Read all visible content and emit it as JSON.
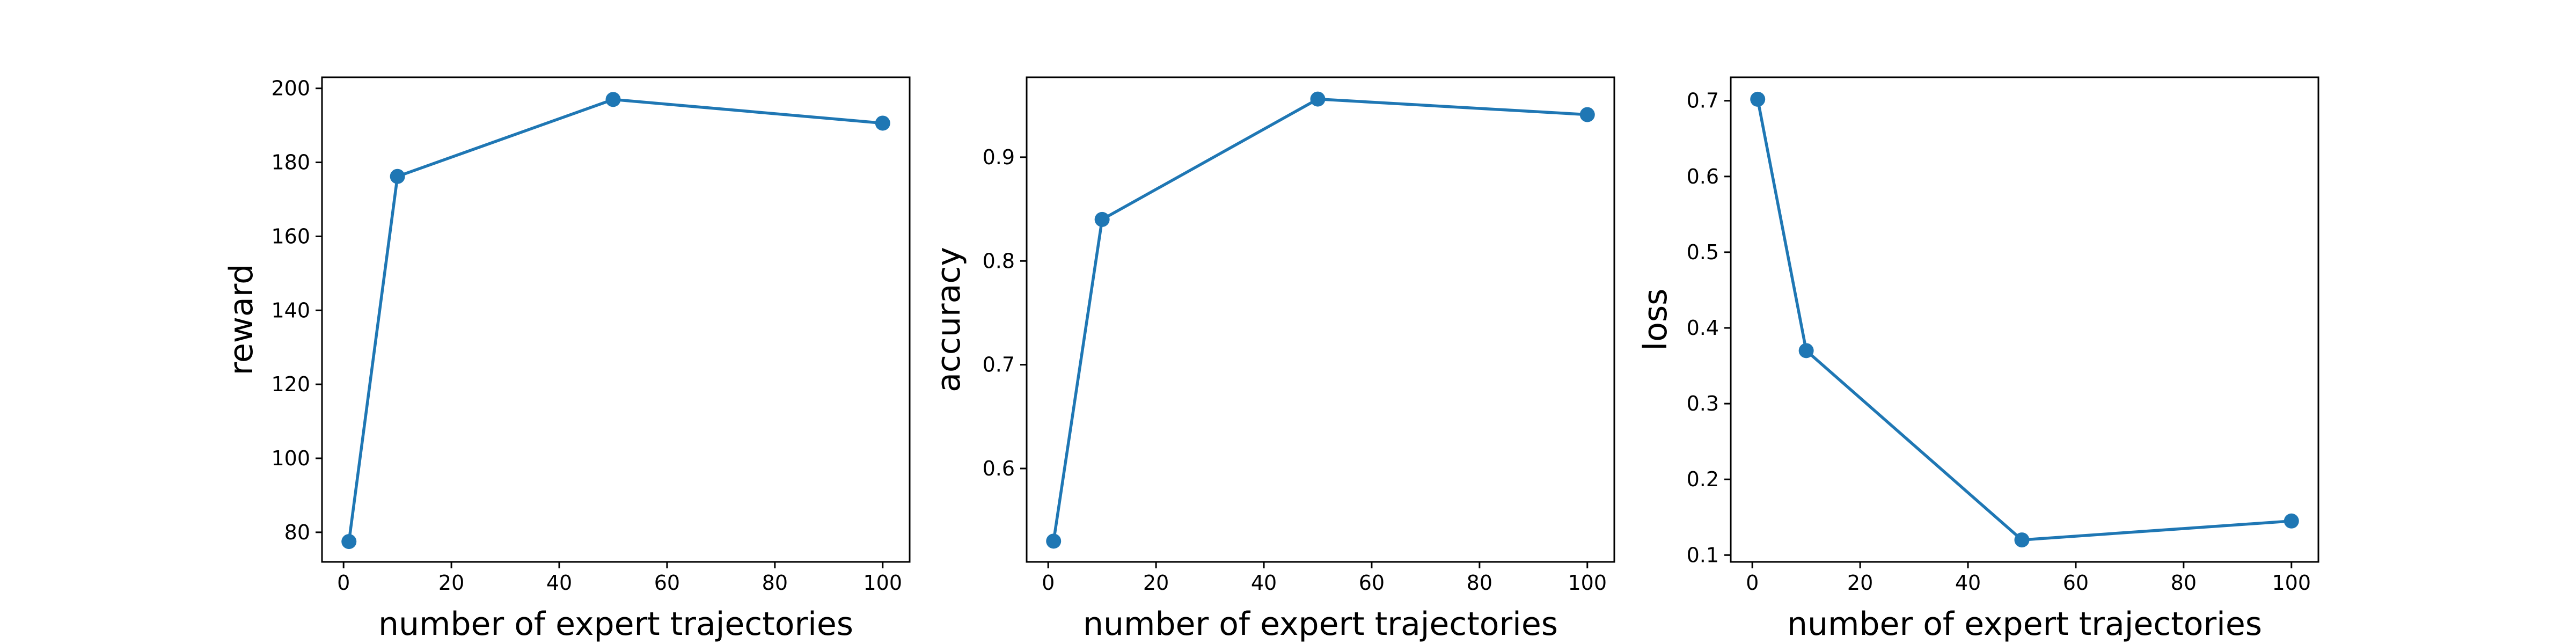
{
  "chart_data": [
    {
      "type": "line",
      "xlabel": "number of expert trajectories",
      "ylabel": "reward",
      "x": [
        1,
        10,
        50,
        100
      ],
      "series": [
        {
          "values": [
            77.5,
            176.2,
            197.0,
            190.6
          ]
        }
      ],
      "xlim": [
        -4,
        105
      ],
      "ylim": [
        72,
        203
      ],
      "xticks": [
        0,
        20,
        40,
        60,
        80,
        100
      ],
      "yticks": [
        80,
        100,
        120,
        140,
        160,
        180,
        200
      ],
      "grid": false,
      "marker": "circle",
      "color": "#1f77b4"
    },
    {
      "type": "line",
      "xlabel": "number of expert trajectories",
      "ylabel": "accuracy",
      "x": [
        1,
        10,
        50,
        100
      ],
      "series": [
        {
          "values": [
            0.53,
            0.84,
            0.956,
            0.941
          ]
        }
      ],
      "xlim": [
        -4,
        105
      ],
      "ylim": [
        0.51,
        0.977
      ],
      "xticks": [
        0,
        20,
        40,
        60,
        80,
        100
      ],
      "yticks": [
        0.6,
        0.7,
        0.8,
        0.9
      ],
      "grid": false,
      "marker": "circle",
      "color": "#1f77b4"
    },
    {
      "type": "line",
      "xlabel": "number of expert trajectories",
      "ylabel": "loss",
      "x": [
        1,
        10,
        50,
        100
      ],
      "series": [
        {
          "values": [
            0.702,
            0.37,
            0.12,
            0.145
          ]
        }
      ],
      "xlim": [
        -4,
        105
      ],
      "ylim": [
        0.091,
        0.731
      ],
      "xticks": [
        0,
        20,
        40,
        60,
        80,
        100
      ],
      "yticks": [
        0.1,
        0.2,
        0.3,
        0.4,
        0.5,
        0.6,
        0.7
      ],
      "grid": false,
      "marker": "circle",
      "color": "#1f77b4"
    }
  ]
}
